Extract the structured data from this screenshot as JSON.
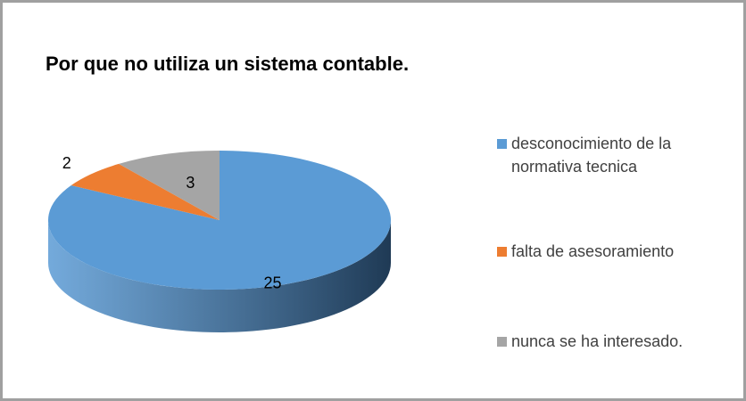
{
  "chart_data": {
    "type": "pie3d",
    "title": "Por que no utiliza un sistema contable.",
    "categories": [
      "desconocimiento de la normativa tecnica",
      "falta de asesoramiento",
      "nunca se ha interesado."
    ],
    "values": [
      25,
      2,
      3
    ],
    "colors": [
      "#5b9bd5",
      "#ed7d31",
      "#a5a5a5"
    ],
    "legend": "right"
  }
}
